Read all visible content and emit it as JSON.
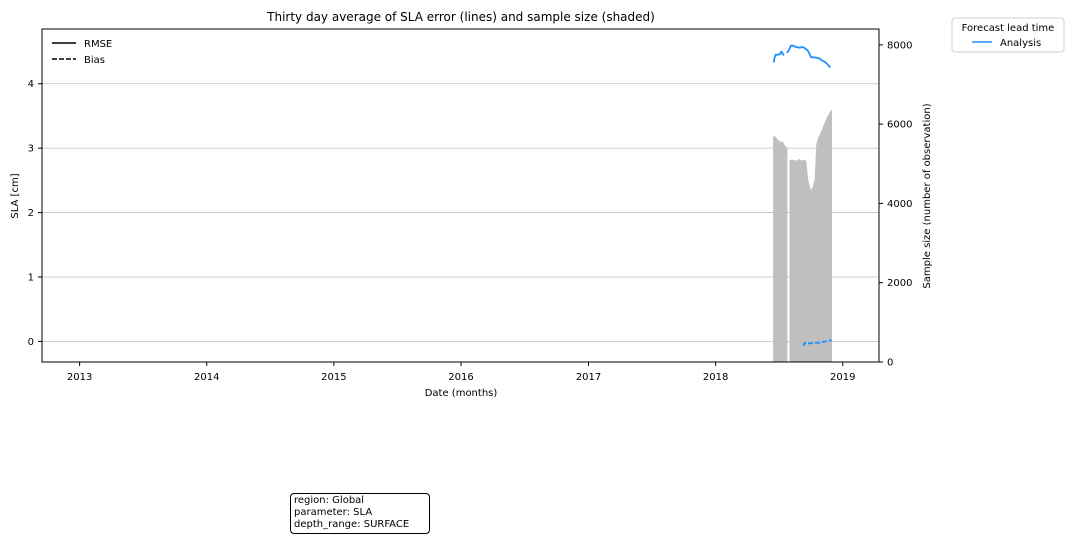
{
  "chart_data": {
    "type": "line",
    "title": "Thirty day average of SLA error (lines) and sample size (shaded)",
    "xlabel": "Date (months)",
    "ylabel": "SLA [cm]",
    "ylabel_right": "Sample size (number of observation)",
    "x_ticks": [
      "2013",
      "2014",
      "2015",
      "2016",
      "2017",
      "2018",
      "2019"
    ],
    "xlim": [
      "2012-09-15",
      "2019-04-15"
    ],
    "ylim": [
      -0.32,
      4.85
    ],
    "y_ticks": [
      "0",
      "1",
      "2",
      "3",
      "4"
    ],
    "ylim_right": [
      0,
      8400
    ],
    "y_ticks_right": [
      "0",
      "2000",
      "4000",
      "6000",
      "8000"
    ],
    "grid": "horizontal",
    "style_legend": {
      "placement": "top-left",
      "entries": [
        {
          "label": "RMSE",
          "style": "solid"
        },
        {
          "label": "Bias",
          "style": "dashed"
        }
      ]
    },
    "legend": {
      "title": "Forecast lead time",
      "placement": "outside top-right",
      "entries": [
        {
          "label": "Analysis",
          "color": "#1e90ff"
        }
      ]
    },
    "series": [
      {
        "name": "Analysis",
        "metric": "RMSE",
        "color": "#1e90ff",
        "segments": [
          [
            [
              "2018-06-17",
              4.33
            ],
            [
              "2018-06-19",
              4.4
            ],
            [
              "2018-06-22",
              4.45
            ],
            [
              "2018-06-28",
              4.45
            ],
            [
              "2018-07-05",
              4.46
            ],
            [
              "2018-07-09",
              4.5
            ],
            [
              "2018-07-13",
              4.46
            ],
            [
              "2018-07-16",
              4.44
            ]
          ],
          [
            [
              "2018-07-24",
              4.48
            ],
            [
              "2018-07-30",
              4.52
            ],
            [
              "2018-08-05",
              4.59
            ],
            [
              "2018-08-12",
              4.59
            ],
            [
              "2018-08-20",
              4.57
            ],
            [
              "2018-08-30",
              4.56
            ],
            [
              "2018-09-06",
              4.57
            ],
            [
              "2018-09-12",
              4.56
            ],
            [
              "2018-09-22",
              4.52
            ],
            [
              "2018-09-28",
              4.46
            ],
            [
              "2018-10-02",
              4.41
            ],
            [
              "2018-10-10",
              4.41
            ],
            [
              "2018-10-20",
              4.4
            ],
            [
              "2018-10-27",
              4.39
            ],
            [
              "2018-11-03",
              4.36
            ],
            [
              "2018-11-10",
              4.34
            ],
            [
              "2018-11-17",
              4.31
            ],
            [
              "2018-11-22",
              4.28
            ],
            [
              "2018-11-26",
              4.25
            ]
          ]
        ]
      },
      {
        "name": "Analysis",
        "metric": "Bias",
        "color": "#1e90ff",
        "segments": [
          [
            [
              "2018-09-10",
              -0.07
            ],
            [
              "2018-09-13",
              -0.02
            ],
            [
              "2018-09-20",
              -0.03
            ],
            [
              "2018-09-27",
              -0.03
            ],
            [
              "2018-10-02",
              -0.03
            ],
            [
              "2018-10-10",
              -0.02
            ],
            [
              "2018-10-18",
              -0.02
            ],
            [
              "2018-10-26",
              -0.02
            ],
            [
              "2018-11-03",
              -0.01
            ],
            [
              "2018-11-12",
              0.0
            ],
            [
              "2018-11-22",
              0.01
            ],
            [
              "2018-11-30",
              0.02
            ]
          ]
        ]
      }
    ],
    "sample_size": {
      "color": "#bfbfbf",
      "segments": [
        [
          [
            "2018-06-15",
            5700
          ],
          [
            "2018-06-22",
            5680
          ],
          [
            "2018-06-29",
            5600
          ],
          [
            "2018-07-06",
            5560
          ],
          [
            "2018-07-13",
            5560
          ],
          [
            "2018-07-20",
            5440
          ],
          [
            "2018-07-26",
            5400
          ]
        ],
        [
          [
            "2018-08-01",
            5100
          ],
          [
            "2018-08-10",
            5100
          ],
          [
            "2018-08-20",
            5080
          ],
          [
            "2018-08-28",
            5120
          ],
          [
            "2018-09-05",
            5080
          ],
          [
            "2018-09-12",
            5100
          ],
          [
            "2018-09-18",
            5080
          ],
          [
            "2018-09-24",
            4580
          ],
          [
            "2018-10-01",
            4350
          ],
          [
            "2018-10-06",
            4400
          ],
          [
            "2018-10-12",
            4600
          ],
          [
            "2018-10-17",
            5500
          ],
          [
            "2018-10-22",
            5650
          ],
          [
            "2018-10-30",
            5800
          ],
          [
            "2018-11-08",
            6000
          ],
          [
            "2018-11-18",
            6200
          ],
          [
            "2018-12-01",
            6380
          ]
        ]
      ]
    }
  },
  "info_box": {
    "region": "region: Global",
    "parameter": "parameter: SLA",
    "depth_range": "depth_range: SURFACE"
  }
}
